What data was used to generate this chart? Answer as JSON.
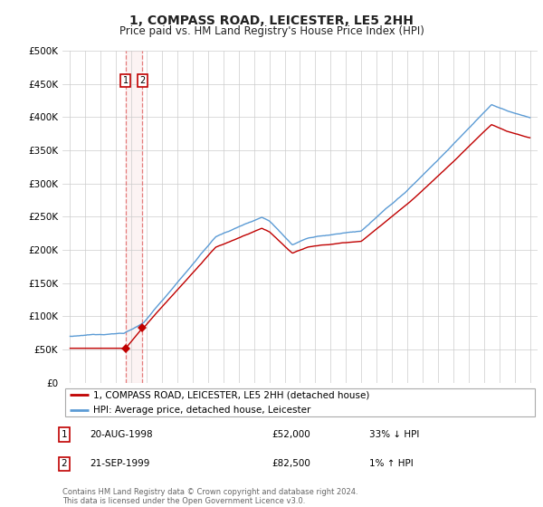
{
  "title": "1, COMPASS ROAD, LEICESTER, LE5 2HH",
  "subtitle": "Price paid vs. HM Land Registry's House Price Index (HPI)",
  "legend_line1": "1, COMPASS ROAD, LEICESTER, LE5 2HH (detached house)",
  "legend_line2": "HPI: Average price, detached house, Leicester",
  "annotation1_date": "20-AUG-1998",
  "annotation1_price": "£52,000",
  "annotation1_hpi": "33% ↓ HPI",
  "annotation2_date": "21-SEP-1999",
  "annotation2_price": "£82,500",
  "annotation2_hpi": "1% ↑ HPI",
  "footnote": "Contains HM Land Registry data © Crown copyright and database right 2024.\nThis data is licensed under the Open Government Licence v3.0.",
  "sale1_year": 1998.63,
  "sale1_price": 52000,
  "sale2_year": 1999.72,
  "sale2_price": 82500,
  "hpi_color": "#5b9bd5",
  "price_color": "#c00000",
  "vline_color": "#e06060",
  "background_color": "#ffffff",
  "grid_color": "#cccccc",
  "ylim": [
    0,
    500000
  ],
  "xlim_start": 1994.5,
  "xlim_end": 2025.5
}
